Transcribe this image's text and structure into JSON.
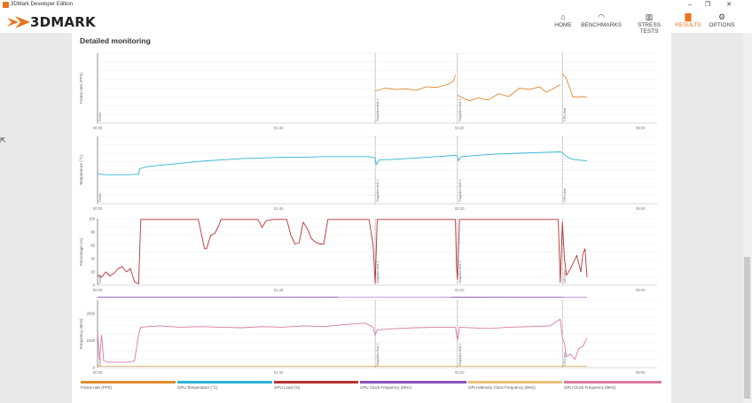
{
  "window": {
    "title": "3DMark Developer Edition",
    "minimize": "–",
    "maximize": "❐",
    "close": "✕"
  },
  "brand": {
    "name": "3DMARK"
  },
  "nav": [
    {
      "label": "HOME",
      "icon": "home-icon",
      "glyph": "⌂",
      "active": false
    },
    {
      "label": "BENCHMARKS",
      "icon": "gauge-icon",
      "glyph": "◠",
      "active": false
    },
    {
      "label": "STRESS TESTS",
      "icon": "bars-icon",
      "glyph": "▥",
      "active": false
    },
    {
      "label": "RESULTS",
      "icon": "results-icon",
      "glyph": "▇",
      "active": true
    },
    {
      "label": "OPTIONS",
      "icon": "gear-icon",
      "glyph": "⚙",
      "active": false
    }
  ],
  "panel": {
    "title": "Detailed monitoring"
  },
  "colors": {
    "accent": "#e8741e",
    "frame_rate": "#e08a2e",
    "temperature": "#2eb3d6",
    "gpu_load": "#b83232",
    "cpu_clock": "#8a52b8",
    "mem_clock": "#e8c27a",
    "gpu_clock": "#d97aa0"
  },
  "chart_data": {
    "type": "line",
    "markers": [
      {
        "label": "Demo",
        "t": 0
      },
      {
        "label": "Graphics test 1",
        "t": 135
      },
      {
        "label": "Graphics test 2",
        "t": 175
      },
      {
        "label": "CPU test",
        "t": 226
      }
    ],
    "x_ticks": [
      {
        "label": "00:00",
        "t": 0
      },
      {
        "label": "01:40",
        "t": 88
      },
      {
        "label": "03:20",
        "t": 176
      },
      {
        "label": "05:00",
        "t": 264
      }
    ],
    "charts": [
      {
        "ylabel": "Frame rate (FPS)",
        "ylim": [
          0,
          100
        ],
        "yticks": [],
        "series": [
          {
            "color_key": "frame_rate",
            "segments": [
              [
                [
                  135,
                  46
                ],
                [
                  140,
                  50
                ],
                [
                  145,
                  48
                ],
                [
                  150,
                  49
                ],
                [
                  155,
                  47
                ],
                [
                  160,
                  52
                ],
                [
                  165,
                  51
                ],
                [
                  170,
                  55
                ],
                [
                  173,
                  60
                ],
                [
                  174,
                  69
                ]
              ],
              [
                [
                  175,
                  40
                ],
                [
                  178,
                  35
                ],
                [
                  181,
                  32
                ],
                [
                  185,
                  36
                ],
                [
                  190,
                  33
                ],
                [
                  195,
                  42
                ],
                [
                  200,
                  38
                ],
                [
                  205,
                  50
                ],
                [
                  210,
                  48
                ],
                [
                  215,
                  52
                ],
                [
                  218,
                  44
                ],
                [
                  222,
                  50
                ],
                [
                  225,
                  55
                ]
              ],
              [
                [
                  226,
                  71
                ],
                [
                  228,
                  63
                ],
                [
                  230,
                  47
                ],
                [
                  231,
                  38
                ],
                [
                  233,
                  37
                ],
                [
                  235,
                  38
                ],
                [
                  238,
                  37
                ]
              ]
            ]
          }
        ]
      },
      {
        "ylabel": "Temperature (°C)",
        "ylim": [
          0,
          100
        ],
        "yticks": [],
        "series": [
          {
            "color_key": "temperature",
            "segments": [
              [
                [
                  0,
                  44
                ],
                [
                  5,
                  43
                ],
                [
                  10,
                  43
                ],
                [
                  15,
                  43
                ],
                [
                  20,
                  44
                ],
                [
                  20.5,
                  52
                ],
                [
                  24,
                  55
                ],
                [
                  30,
                  57
                ],
                [
                  40,
                  60
                ],
                [
                  50,
                  63
                ],
                [
                  60,
                  65
                ],
                [
                  70,
                  67
                ],
                [
                  80,
                  68
                ],
                [
                  90,
                  69
                ],
                [
                  100,
                  69
                ],
                [
                  110,
                  70
                ],
                [
                  120,
                  70
                ],
                [
                  132,
                  70
                ],
                [
                  135,
                  68
                ],
                [
                  135.5,
                  58
                ],
                [
                  137,
                  65
                ],
                [
                  145,
                  66
                ],
                [
                  155,
                  68
                ],
                [
                  165,
                  70
                ],
                [
                  174,
                  72
                ],
                [
                  175,
                  70
                ],
                [
                  175.5,
                  64
                ],
                [
                  177,
                  70
                ],
                [
                  185,
                  72
                ],
                [
                  195,
                  74
                ],
                [
                  205,
                  75
                ],
                [
                  215,
                  76
                ],
                [
                  225,
                  77
                ],
                [
                  226,
                  76
                ],
                [
                  228,
                  70
                ],
                [
                  230,
                  67
                ],
                [
                  233,
                  65
                ],
                [
                  238,
                  64
                ]
              ]
            ]
          }
        ]
      },
      {
        "ylabel": "Percentage (%)",
        "ylim": [
          0,
          100
        ],
        "yticks": [
          0,
          20,
          40,
          60,
          80,
          100
        ],
        "series": [
          {
            "color_key": "gpu_load",
            "segments": [
              [
                [
                  0,
                  15
                ],
                [
                  2,
                  12
                ],
                [
                  4,
                  20
                ],
                [
                  6,
                  14
                ],
                [
                  8,
                  18
                ],
                [
                  10,
                  25
                ],
                [
                  12,
                  28
                ],
                [
                  14,
                  20
                ],
                [
                  16,
                  25
                ],
                [
                  18,
                  5
                ],
                [
                  20,
                  2
                ],
                [
                  21,
                  99
                ],
                [
                  30,
                  99
                ],
                [
                  40,
                  99
                ],
                [
                  49,
                  99
                ],
                [
                  51,
                  70
                ],
                [
                  52,
                  55
                ],
                [
                  53,
                  55
                ],
                [
                  55,
                  75
                ],
                [
                  57,
                  78
                ],
                [
                  59,
                  90
                ],
                [
                  60,
                  99
                ],
                [
                  70,
                  99
                ],
                [
                  78,
                  99
                ],
                [
                  80,
                  87
                ],
                [
                  82,
                  97
                ],
                [
                  85,
                  99
                ],
                [
                  90,
                  99
                ],
                [
                  92,
                  99
                ],
                [
                  94,
                  75
                ],
                [
                  96,
                  62
                ],
                [
                  98,
                  64
                ],
                [
                  100,
                  95
                ],
                [
                  102,
                  85
                ],
                [
                  104,
                  70
                ],
                [
                  106,
                  65
                ],
                [
                  108,
                  62
                ],
                [
                  110,
                  62
                ],
                [
                  112,
                  99
                ],
                [
                  120,
                  99
                ],
                [
                  132,
                  99
                ],
                [
                  134,
                  60
                ],
                [
                  135,
                  3
                ],
                [
                  136,
                  99
                ],
                [
                  150,
                  99
                ],
                [
                  165,
                  99
                ],
                [
                  174,
                  99
                ],
                [
                  174.5,
                  30
                ],
                [
                  175,
                  8
                ],
                [
                  176,
                  99
                ],
                [
                  190,
                  99
                ],
                [
                  210,
                  99
                ],
                [
                  224,
                  99
                ],
                [
                  225,
                  4
                ],
                [
                  226,
                  95
                ],
                [
                  227,
                  40
                ],
                [
                  228,
                  15
                ],
                [
                  230,
                  25
                ],
                [
                  233,
                  45
                ],
                [
                  235,
                  20
                ],
                [
                  236,
                  48
                ],
                [
                  237,
                  55
                ],
                [
                  238,
                  12
                ]
              ]
            ]
          }
        ]
      },
      {
        "ylabel": "Frequency (MHz)",
        "ylim": [
          0,
          2500
        ],
        "yticks": [
          0,
          1000,
          2000
        ],
        "series": [
          {
            "color_key": "cpu_clock",
            "segments": [
              [
                [
                  0,
                  2620
                ],
                [
                  238,
                  2610
                ]
              ]
            ]
          },
          {
            "color_key": "mem_clock",
            "segments": [
              [
                [
                  0,
                  50
                ],
                [
                  238,
                  50
                ]
              ]
            ]
          },
          {
            "color_key": "gpu_clock",
            "segments": [
              [
                [
                  0,
                  1300
                ],
                [
                  1,
                  300
                ],
                [
                  2,
                  1200
                ],
                [
                  3,
                  250
                ],
                [
                  5,
                  200
                ],
                [
                  10,
                  200
                ],
                [
                  15,
                  200
                ],
                [
                  18,
                  250
                ],
                [
                  20,
                  1250
                ],
                [
                  21,
                  1500
                ],
                [
                  30,
                  1550
                ],
                [
                  40,
                  1500
                ],
                [
                  50,
                  1520
                ],
                [
                  60,
                  1500
                ],
                [
                  70,
                  1480
                ],
                [
                  80,
                  1520
                ],
                [
                  90,
                  1500
                ],
                [
                  100,
                  1550
                ],
                [
                  110,
                  1520
                ],
                [
                  120,
                  1600
                ],
                [
                  130,
                  1650
                ],
                [
                  134,
                  1500
                ],
                [
                  135,
                  1200
                ],
                [
                  136,
                  1400
                ],
                [
                  145,
                  1450
                ],
                [
                  155,
                  1480
                ],
                [
                  165,
                  1500
                ],
                [
                  174,
                  1500
                ],
                [
                  175,
                  1000
                ],
                [
                  176,
                  1500
                ],
                [
                  190,
                  1450
                ],
                [
                  200,
                  1500
                ],
                [
                  210,
                  1520
                ],
                [
                  220,
                  1550
                ],
                [
                  225,
                  1800
                ],
                [
                  226,
                  1100
                ],
                [
                  227,
                  900
                ],
                [
                  228,
                  400
                ],
                [
                  230,
                  500
                ],
                [
                  232,
                  300
                ],
                [
                  234,
                  700
                ],
                [
                  236,
                  800
                ],
                [
                  238,
                  1100
                ]
              ]
            ]
          }
        ]
      }
    ],
    "legend": [
      {
        "label": "Frame rate (FPS)",
        "color_key": "frame_rate"
      },
      {
        "label": "GPU Temperature (°C)",
        "color_key": "temperature"
      },
      {
        "label": "GPU Load (%)",
        "color_key": "gpu_load"
      },
      {
        "label": "CPU Clock Frequency (MHz)",
        "color_key": "cpu_clock"
      },
      {
        "label": "GPU Memory Clock Frequency (MHz)",
        "color_key": "mem_clock"
      },
      {
        "label": "GPU Clock Frequency (MHz)",
        "color_key": "gpu_clock"
      }
    ]
  }
}
